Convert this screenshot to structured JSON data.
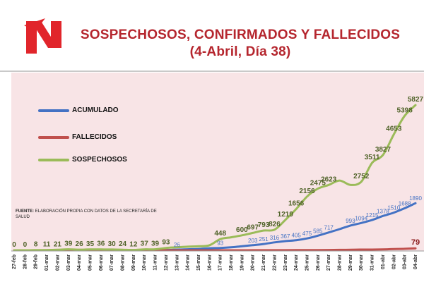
{
  "header": {
    "title_line1": "SOSPECHOSOS, CONFIRMADOS Y FALLECIDOS",
    "title_line2": "(4-Abril, Día 38)"
  },
  "source": {
    "label": "FUENTE:",
    "text": "ELABORACIÓN PROPIA CON DATOS DE LA SECRETARÍA DE SALUD"
  },
  "colors": {
    "brand": "#e1252b",
    "title": "#b5262e",
    "plot_bg": "#f8e4e6",
    "acumulado": "#4472c4",
    "fallecidos": "#c0504d",
    "sospechosos": "#9bbb59"
  },
  "chart_data": {
    "type": "line",
    "title": "SOSPECHOSOS, CONFIRMADOS Y FALLECIDOS",
    "subtitle": "(4-Abril, Día 38)",
    "legend_position": "left",
    "grid": false,
    "ylim": [
      0,
      6000
    ],
    "categories": [
      "27-feb",
      "28-feb",
      "29-feb",
      "01-mar",
      "02-mar",
      "03-mar",
      "04-mar",
      "05-mar",
      "06-mar",
      "07-mar",
      "08-mar",
      "09-mar",
      "10-mar",
      "11-mar",
      "12-mar",
      "13-mar",
      "14-mar",
      "15-mar",
      "16-mar",
      "17-mar",
      "18-mar",
      "19-mar",
      "20-mar",
      "21-mar",
      "22-mar",
      "23-mar",
      "24-mar",
      "25-mar",
      "26-mar",
      "27-mar",
      "28-mar",
      "29-mar",
      "30-mar",
      "31-mar",
      "01-abr",
      "02-abr",
      "03-abr",
      "04-abr"
    ],
    "series": [
      {
        "name": "ACUMULADO",
        "values": [
          0,
          0,
          0,
          1,
          2,
          5,
          5,
          5,
          5,
          6,
          7,
          7,
          7,
          8,
          12,
          26,
          41,
          53,
          82,
          93,
          118,
          164,
          203,
          251,
          316,
          367,
          405,
          475,
          585,
          717,
          848,
          993,
          1094,
          1215,
          1378,
          1510,
          1688,
          1890
        ],
        "labels": [
          null,
          null,
          null,
          null,
          null,
          null,
          null,
          null,
          null,
          null,
          null,
          null,
          null,
          null,
          null,
          "26",
          null,
          null,
          null,
          "93",
          null,
          null,
          "203",
          "251",
          "316",
          "367",
          "405",
          "475",
          "585",
          "717",
          null,
          "993",
          "1094",
          "1215",
          "1378",
          "1510",
          "1688",
          "1890"
        ]
      },
      {
        "name": "FALLECIDOS",
        "values": [
          0,
          0,
          0,
          0,
          0,
          0,
          0,
          0,
          0,
          0,
          0,
          0,
          0,
          0,
          0,
          0,
          0,
          0,
          0,
          0,
          0,
          1,
          2,
          2,
          3,
          4,
          5,
          6,
          8,
          12,
          16,
          20,
          28,
          29,
          37,
          50,
          60,
          79
        ],
        "labels": [
          null,
          null,
          null,
          null,
          null,
          null,
          null,
          null,
          null,
          null,
          null,
          null,
          null,
          null,
          null,
          null,
          null,
          null,
          null,
          null,
          null,
          null,
          null,
          null,
          null,
          null,
          null,
          null,
          null,
          null,
          null,
          null,
          null,
          null,
          null,
          null,
          null,
          "79"
        ]
      },
      {
        "name": "SOSPECHOSOS",
        "values": [
          0,
          0,
          8,
          11,
          21,
          39,
          26,
          35,
          36,
          30,
          24,
          12,
          37,
          39,
          93,
          120,
          145,
          160,
          200,
          448,
          520,
          600,
          697,
          793,
          826,
          1219,
          1656,
          2156,
          2475,
          2623,
          2800,
          2623,
          2752,
          3511,
          3827,
          4653,
          5398,
          5827
        ],
        "labels": [
          "0",
          "0",
          "8",
          "11",
          "21",
          "39",
          "26",
          "35",
          "36",
          "30",
          "24",
          "12",
          "37",
          "39",
          "93",
          null,
          null,
          null,
          null,
          "448",
          null,
          "600",
          "697",
          "793",
          "826",
          "1219",
          "1656",
          "2156",
          "2475",
          "2623",
          null,
          null,
          "2752",
          "3511",
          "3827",
          "4653",
          "5398",
          "5827"
        ]
      }
    ]
  }
}
